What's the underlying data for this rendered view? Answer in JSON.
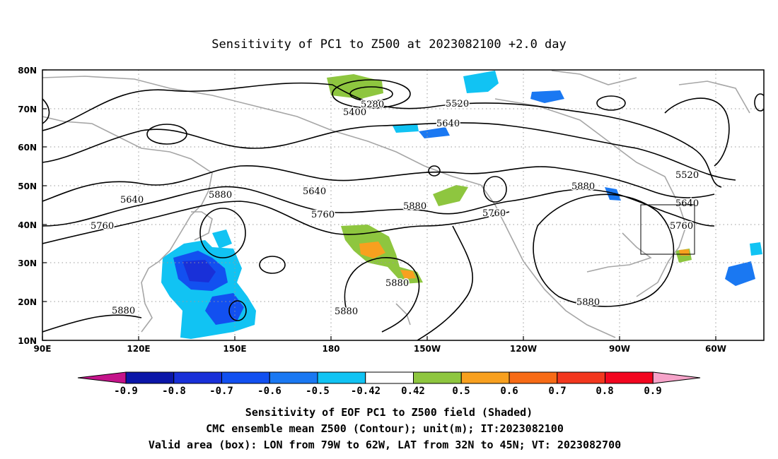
{
  "title": "Sensitivity of PC1 to Z500 at 2023082100 +2.0 day",
  "x_ticks": [
    "90E",
    "120E",
    "150E",
    "180",
    "150W",
    "120W",
    "90W",
    "60W"
  ],
  "y_ticks": [
    "80N",
    "70N",
    "60N",
    "50N",
    "40N",
    "30N",
    "20N",
    "10N"
  ],
  "contour_labels": [
    "5280",
    "5400",
    "5520",
    "5640",
    "5520",
    "5640",
    "5640",
    "5760",
    "5880",
    "5640",
    "5760",
    "5880",
    "5760",
    "5880",
    "5760",
    "5880",
    "5880",
    "5880",
    "5880"
  ],
  "colorbar": {
    "labels": [
      "-0.9",
      "-0.8",
      "-0.7",
      "-0.6",
      "-0.5",
      "-0.42",
      "0.42",
      "0.5",
      "0.6",
      "0.7",
      "0.8",
      "0.9"
    ],
    "colors": [
      "#c4138a",
      "#0b16a8",
      "#1930d8",
      "#1250f0",
      "#1a78f2",
      "#11c3f3",
      "#ffffff",
      "#8ec63f",
      "#f8a01f",
      "#f76b16",
      "#f2371e",
      "#f2061f",
      "#f6a3c9"
    ]
  },
  "footer": [
    "Sensitivity of EOF PC1 to Z500 field (Shaded)",
    "CMC ensemble mean Z500 (Contour); unit(m); IT:2023082100",
    "Valid area (box): LON from 79W to 62W, LAT from 32N to 45N; VT: 2023082700"
  ]
}
